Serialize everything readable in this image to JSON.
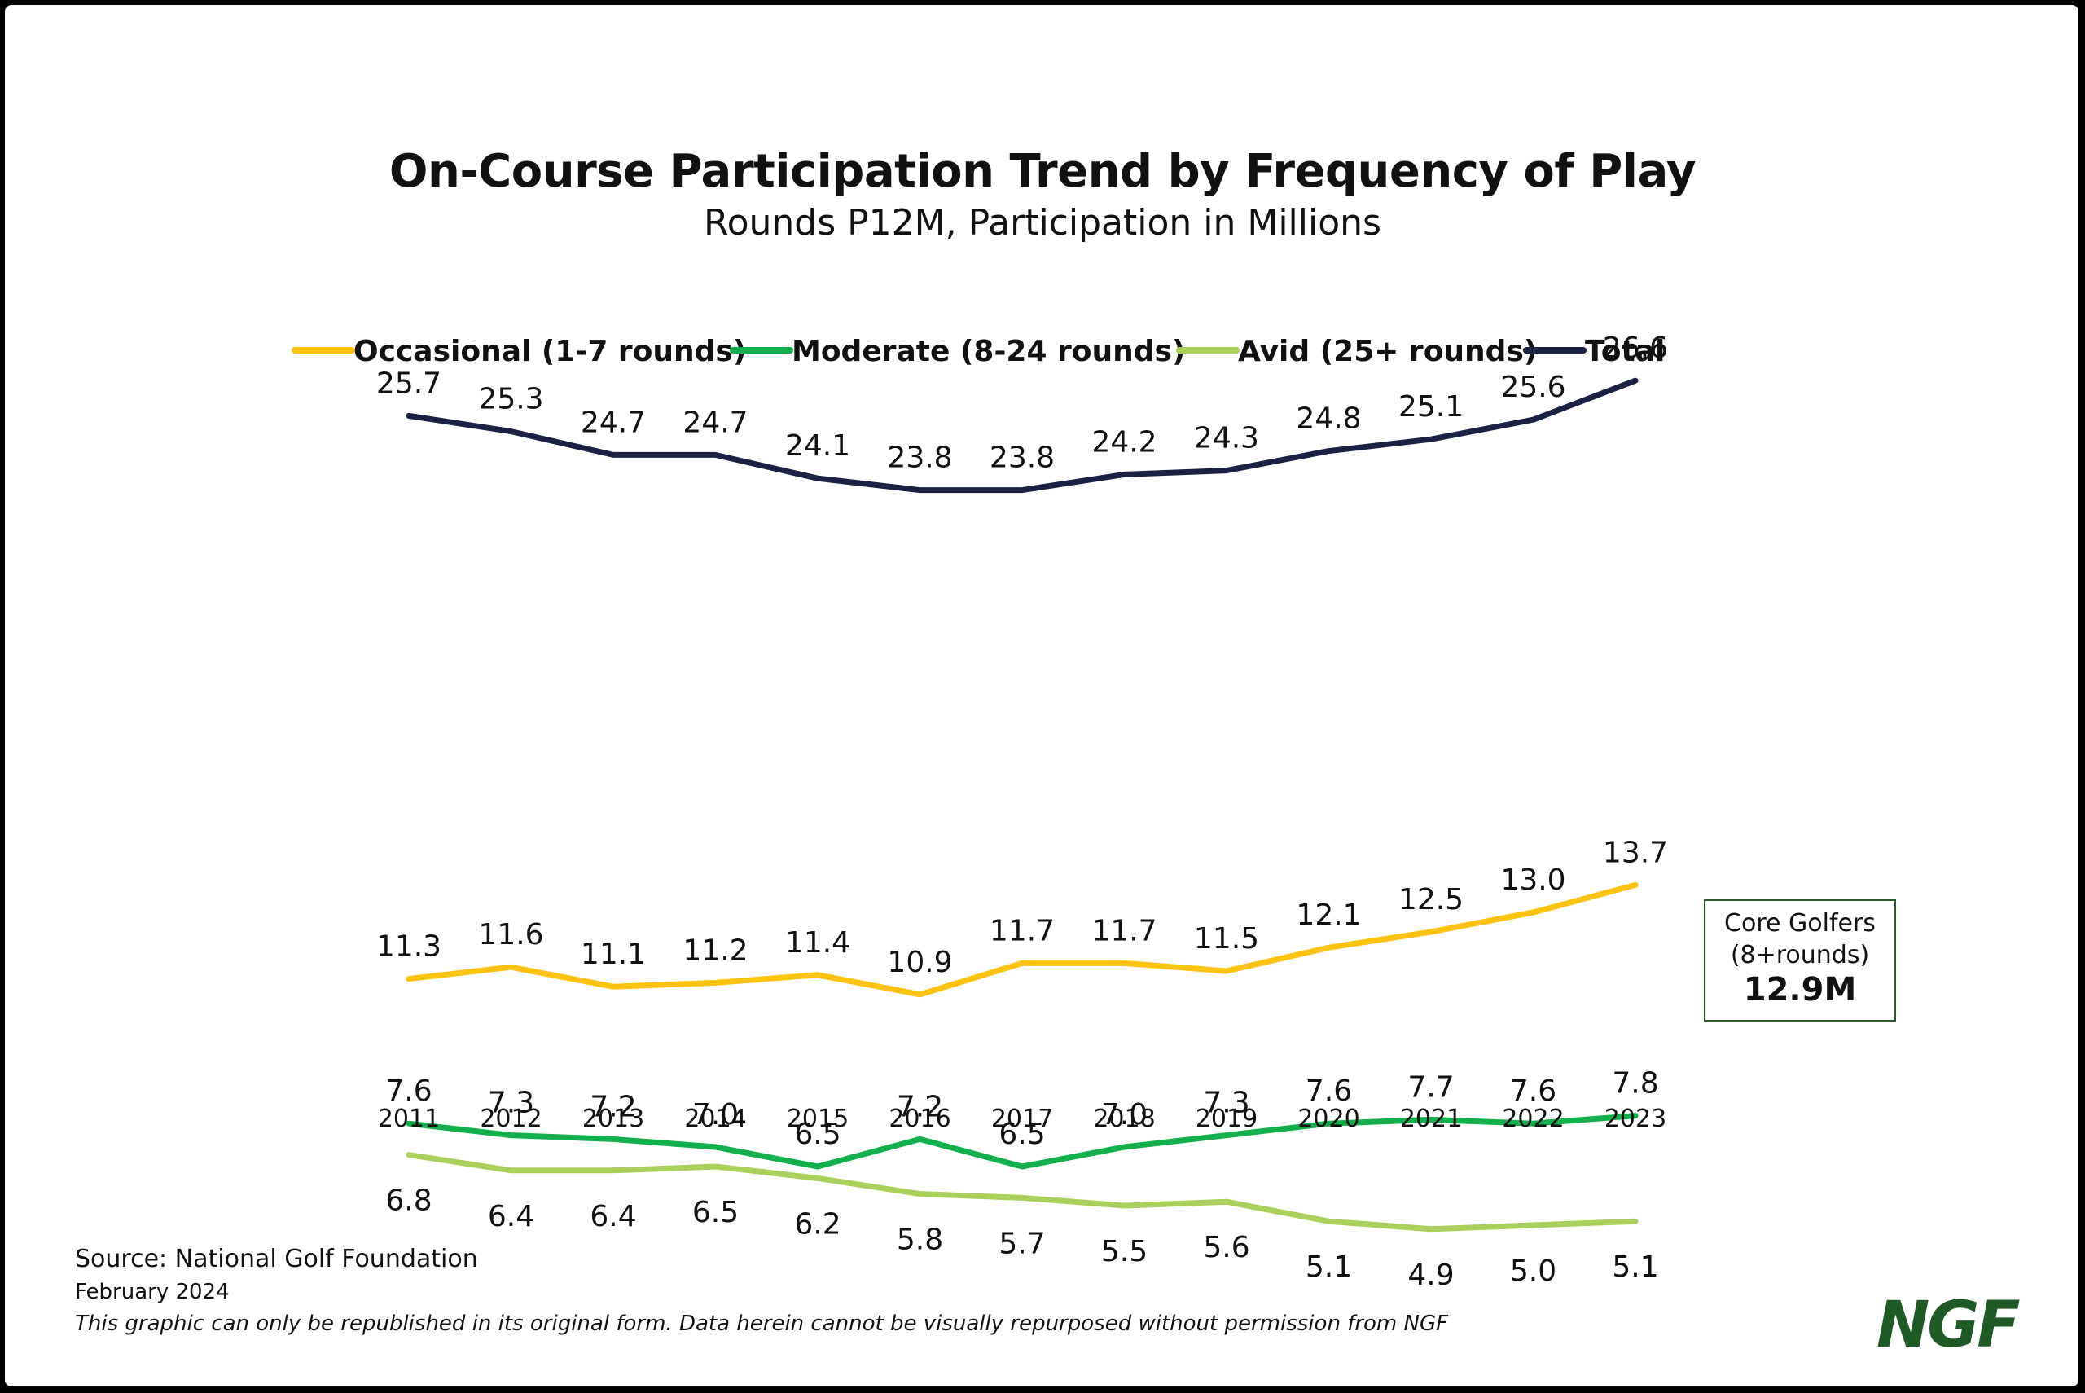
{
  "header": {
    "title": "On-Course Participation Trend by Frequency of Play",
    "subtitle": "Rounds P12M, Participation in Millions"
  },
  "callout": {
    "line1": "Core Golfers",
    "line2": "(8+rounds)",
    "value": "12.9M"
  },
  "footer": {
    "source": "Source: National Golf Foundation",
    "date": "February 2024",
    "note": "This graphic can only be republished in its original form. Data herein cannot be visually repurposed without permission from NGF"
  },
  "logo": {
    "text": "NGF",
    "color": "#1d5a24"
  },
  "chart_data": {
    "type": "line",
    "title": "On-Course Participation Trend by Frequency of Play",
    "subtitle": "Rounds P12M, Participation in Millions",
    "xlabel": "",
    "ylabel": "",
    "grid": false,
    "legend_position": "top",
    "x": [
      "2011",
      "2012",
      "2013",
      "2014",
      "2015",
      "2016",
      "2017",
      "2018",
      "2019",
      "2020",
      "2021",
      "2022",
      "2023"
    ],
    "series": [
      {
        "name": "Occasional (1-7 rounds)",
        "color": "#ffc20e",
        "label_position": "above",
        "values": [
          11.3,
          11.6,
          11.1,
          11.2,
          11.4,
          10.9,
          11.7,
          11.7,
          11.5,
          12.1,
          12.5,
          13.0,
          13.7
        ],
        "labels": [
          "11.3",
          "11.6",
          "11.1",
          "11.2",
          "11.4",
          "10.9",
          "11.7",
          "11.7",
          "11.5",
          "12.1",
          "12.5",
          "13.0",
          "13.7"
        ]
      },
      {
        "name": "Moderate (8-24 rounds)",
        "color": "#12b04b",
        "label_position": "above",
        "values": [
          7.6,
          7.3,
          7.2,
          7.0,
          6.5,
          7.2,
          6.5,
          7.0,
          7.3,
          7.6,
          7.7,
          7.6,
          7.8
        ],
        "labels": [
          "7.6",
          "7.3",
          "7.2",
          "7.0",
          "6.5",
          "7.2",
          "6.5",
          "7.0",
          "7.3",
          "7.6",
          "7.7",
          "7.6",
          "7.8"
        ]
      },
      {
        "name": "Avid (25+ rounds)",
        "color": "#a8d05a",
        "label_position": "below",
        "values": [
          6.8,
          6.4,
          6.4,
          6.5,
          6.2,
          5.8,
          5.7,
          5.5,
          5.6,
          5.1,
          4.9,
          5.0,
          5.1
        ],
        "labels": [
          "6.8",
          "6.4",
          "6.4",
          "6.5",
          "6.2",
          "5.8",
          "5.7",
          "5.5",
          "5.6",
          "5.1",
          "4.9",
          "5.0",
          "5.1"
        ]
      },
      {
        "name": "Total",
        "color": "#1b2145",
        "label_position": "above",
        "values": [
          25.7,
          25.3,
          24.7,
          24.7,
          24.1,
          23.8,
          23.8,
          24.2,
          24.3,
          24.8,
          25.1,
          25.6,
          26.6
        ],
        "labels": [
          "25.7",
          "25.3",
          "24.7",
          "24.7",
          "24.1",
          "23.8",
          "23.8",
          "24.2",
          "24.3",
          "24.8",
          "25.1",
          "25.6",
          "26.6"
        ]
      }
    ]
  }
}
